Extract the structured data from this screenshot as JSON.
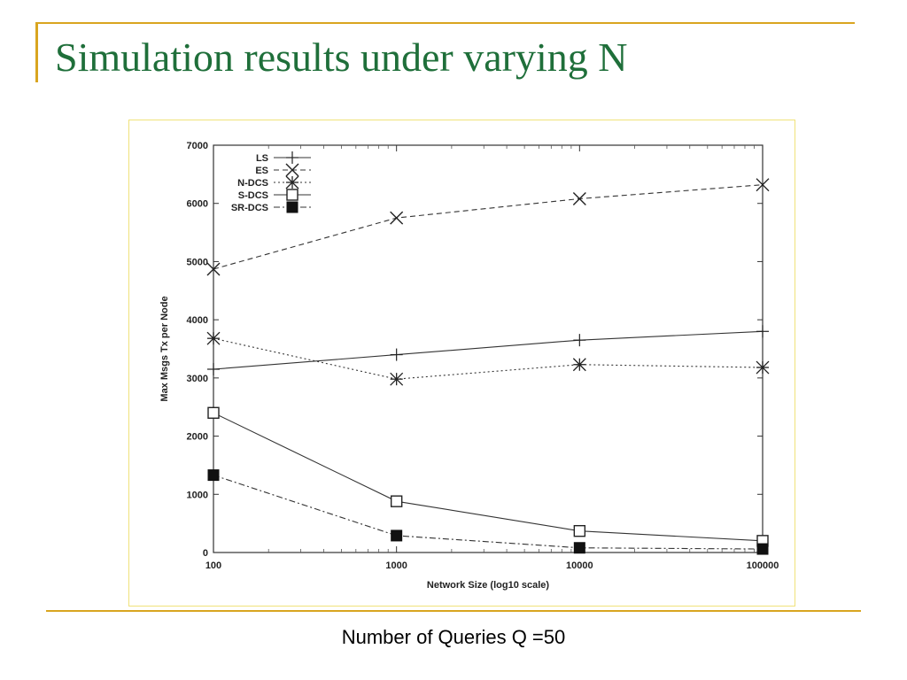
{
  "slide": {
    "title": "Simulation results under varying N",
    "caption": "Number of Queries Q =50"
  },
  "colors": {
    "accent": "#d9a520",
    "title": "#1f6f3a"
  },
  "chart_data": {
    "type": "line",
    "xlabel": "Network Size (log10 scale)",
    "ylabel": "Max Msgs Tx per Node",
    "x_scale": "log",
    "xlim": [
      100,
      100000
    ],
    "ylim": [
      0,
      7000
    ],
    "x_ticks": [
      "100",
      "1000",
      "10000",
      "100000"
    ],
    "y_ticks": [
      "0",
      "1000",
      "2000",
      "3000",
      "4000",
      "5000",
      "6000",
      "7000"
    ],
    "x": [
      100,
      1000,
      10000,
      100000
    ],
    "legend_position": "top-left",
    "series": [
      {
        "name": "LS",
        "values": [
          3150,
          3400,
          3650,
          3800
        ],
        "marker": "plus",
        "dash": "solid"
      },
      {
        "name": "ES",
        "values": [
          4870,
          5750,
          6080,
          6320
        ],
        "marker": "x",
        "dash": "dashed"
      },
      {
        "name": "N-DCS",
        "values": [
          3680,
          2980,
          3230,
          3180
        ],
        "marker": "star",
        "dash": "dotted"
      },
      {
        "name": "S-DCS",
        "values": [
          2400,
          880,
          370,
          200
        ],
        "marker": "square-open",
        "dash": "solid"
      },
      {
        "name": "SR-DCS",
        "values": [
          1330,
          290,
          80,
          60
        ],
        "marker": "square-filled",
        "dash": "dashdot"
      }
    ]
  }
}
